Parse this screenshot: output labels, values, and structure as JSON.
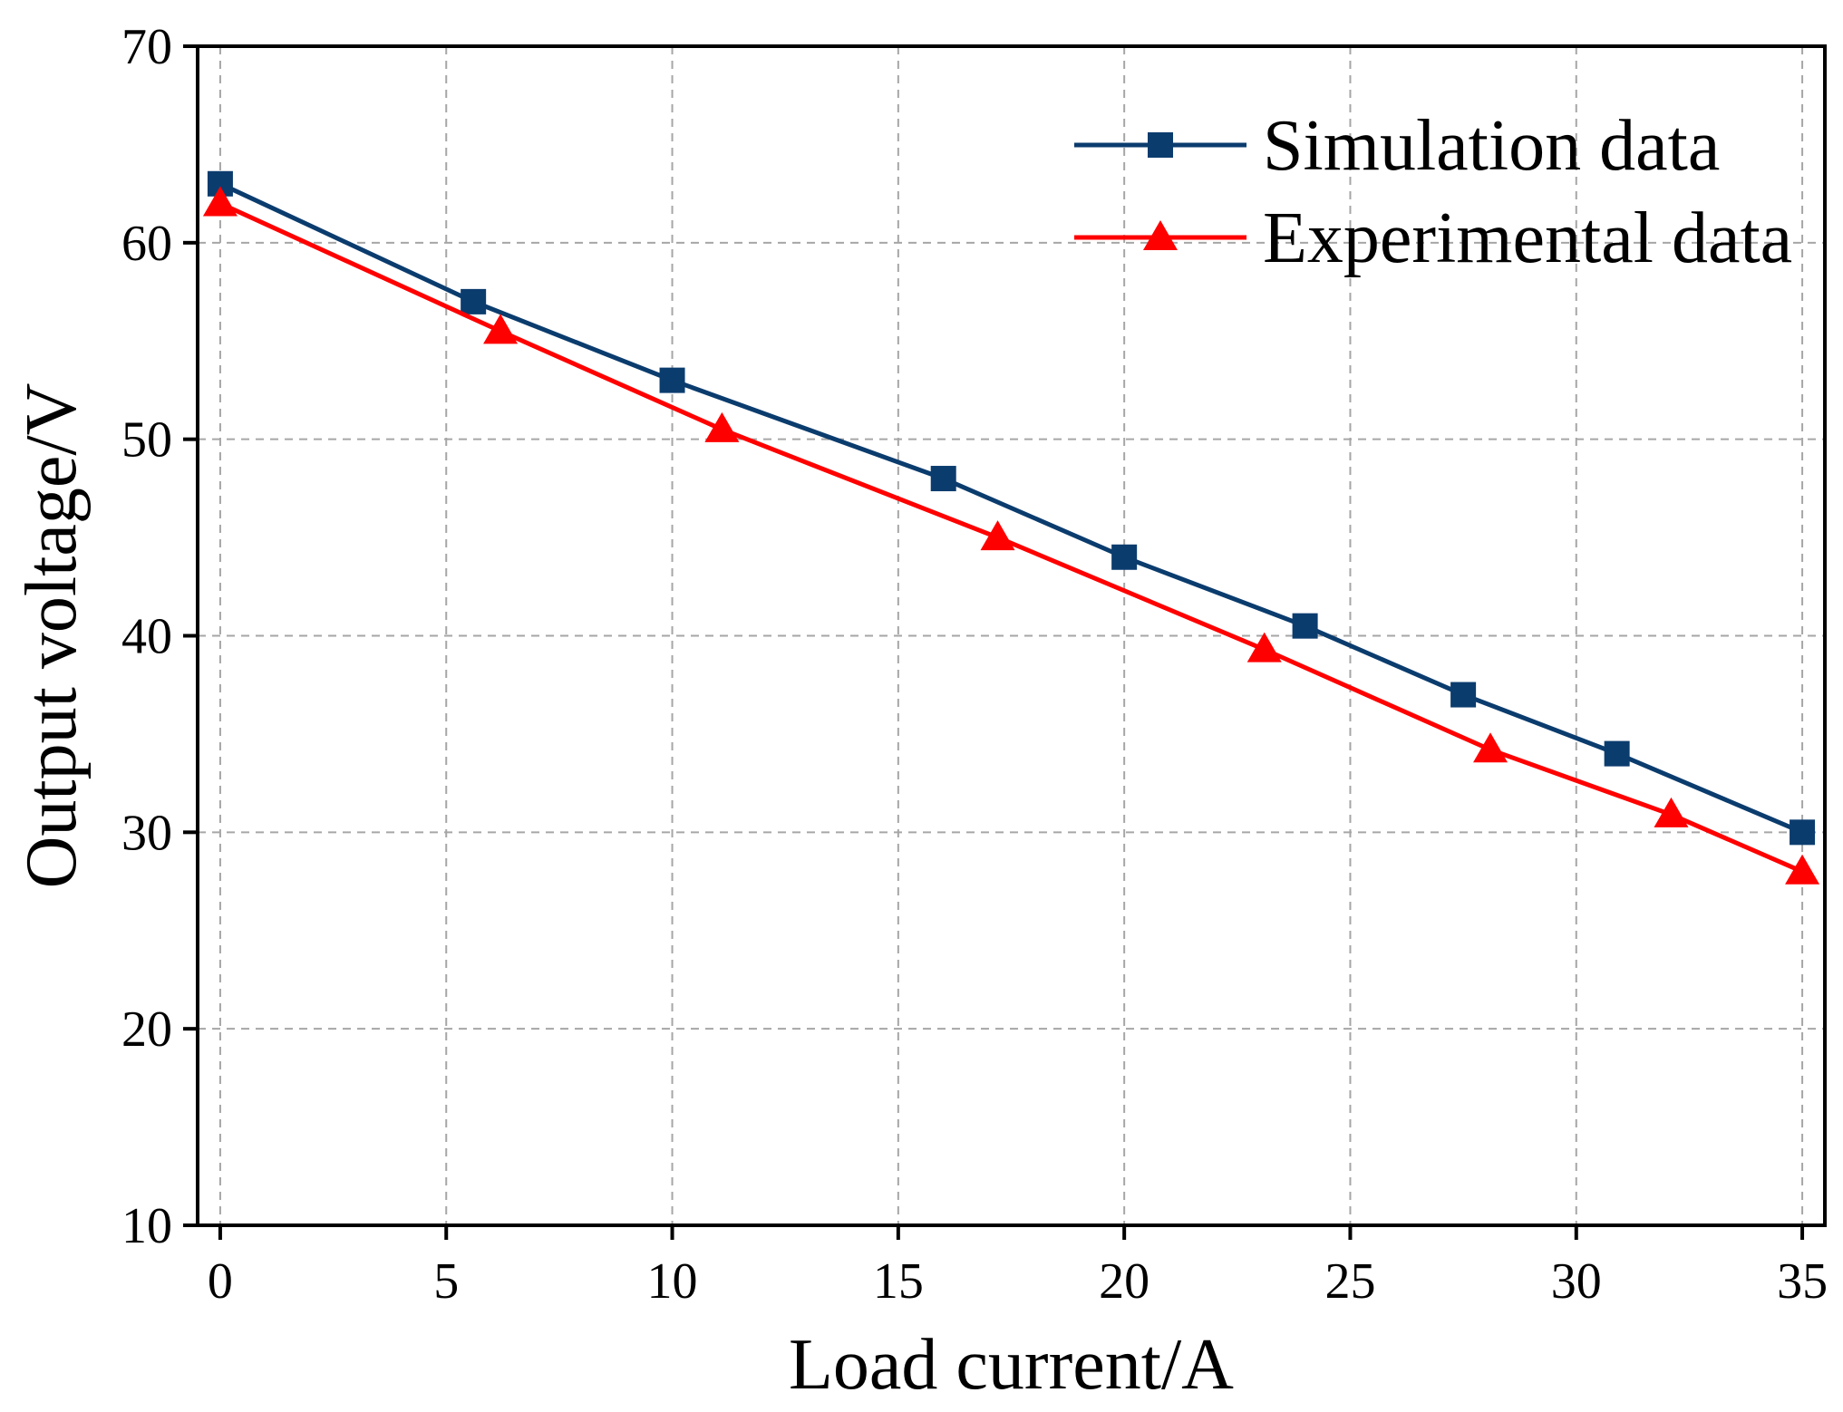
{
  "chart_data": {
    "type": "line",
    "title": "",
    "xlabel": "Load current/A",
    "ylabel": "Output voltage/V",
    "xlim": [
      -0.5,
      35.5
    ],
    "ylim": [
      10,
      70
    ],
    "xticks": [
      0,
      5,
      10,
      15,
      20,
      25,
      30,
      35
    ],
    "yticks": [
      10,
      20,
      30,
      40,
      50,
      60,
      70
    ],
    "xtick_labels": [
      "0",
      "5",
      "10",
      "15",
      "20",
      "25",
      "30",
      "35"
    ],
    "ytick_labels": [
      "10",
      "20",
      "30",
      "40",
      "50",
      "60",
      "70"
    ],
    "grid": true,
    "legend_position": "top-right",
    "series": [
      {
        "name": "Simulation data",
        "color": "#0b3c6e",
        "marker": "square",
        "x": [
          0,
          5.6,
          10,
          16,
          20,
          24,
          27.5,
          30.9,
          35
        ],
        "y": [
          63,
          57,
          53,
          48,
          44,
          40.5,
          37,
          34,
          30
        ]
      },
      {
        "name": "Experimental data",
        "color": "#ff0000",
        "marker": "triangle",
        "x": [
          0,
          6.2,
          11.1,
          17.2,
          23.1,
          28.1,
          32.1,
          35
        ],
        "y": [
          62,
          55.5,
          50.5,
          45,
          39.3,
          34.2,
          30.9,
          28
        ]
      }
    ]
  }
}
